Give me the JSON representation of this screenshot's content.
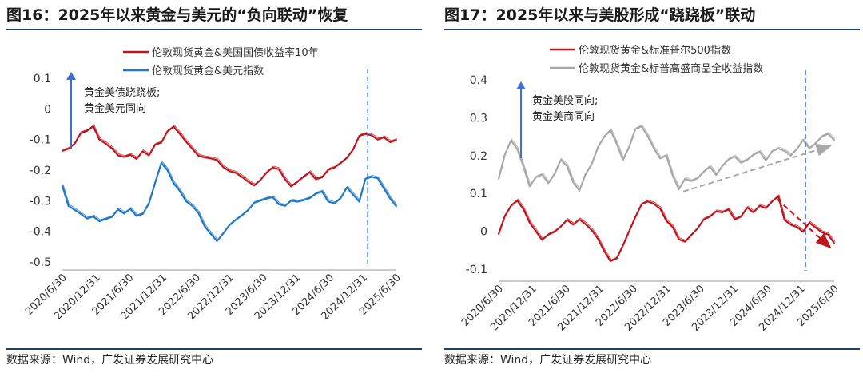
{
  "source_text": "数据来源：Wind，广发证券发展研究中心",
  "chart_data": [
    {
      "type": "line",
      "title": "图16：2025年以来黄金与美元的“负向联动”恢复",
      "x_tick_labels": [
        "2020/6/30",
        "2020/12/31",
        "2021/6/30",
        "2021/12/31",
        "2022/6/30",
        "2022/12/31",
        "2023/6/30",
        "2023/12/31",
        "2024/6/30",
        "2024/12/31",
        "2025/6/30"
      ],
      "y_tick_labels": [
        "0.1",
        "0",
        "-0.1",
        "-0.2",
        "-0.3",
        "-0.4",
        "-0.5"
      ],
      "ylim": [
        -0.5,
        0.1
      ],
      "annotation_lines": [
        "黄金美债跷跷板;",
        "黄金美元同向"
      ],
      "vline_at": "2024/12/31",
      "series": [
        {
          "name": "伦敦现货黄金&美国国债收益率10年",
          "color": "#c0151b",
          "values": [
            -0.14,
            -0.13,
            -0.11,
            -0.08,
            -0.07,
            -0.06,
            -0.1,
            -0.11,
            -0.13,
            -0.15,
            -0.16,
            -0.15,
            -0.16,
            -0.14,
            -0.15,
            -0.12,
            -0.11,
            -0.07,
            -0.06,
            -0.08,
            -0.11,
            -0.13,
            -0.15,
            -0.16,
            -0.16,
            -0.17,
            -0.19,
            -0.2,
            -0.21,
            -0.22,
            -0.24,
            -0.25,
            -0.23,
            -0.21,
            -0.19,
            -0.2,
            -0.23,
            -0.25,
            -0.24,
            -0.22,
            -0.21,
            -0.23,
            -0.22,
            -0.2,
            -0.19,
            -0.18,
            -0.16,
            -0.13,
            -0.09,
            -0.08,
            -0.09,
            -0.1,
            -0.09,
            -0.11,
            -0.1
          ]
        },
        {
          "name": "伦敦现货黄金&美元指数",
          "color": "#1f78c8",
          "values": [
            -0.25,
            -0.32,
            -0.33,
            -0.34,
            -0.36,
            -0.35,
            -0.37,
            -0.36,
            -0.35,
            -0.33,
            -0.34,
            -0.33,
            -0.35,
            -0.34,
            -0.31,
            -0.24,
            -0.18,
            -0.2,
            -0.24,
            -0.27,
            -0.3,
            -0.32,
            -0.34,
            -0.38,
            -0.41,
            -0.43,
            -0.41,
            -0.38,
            -0.36,
            -0.35,
            -0.33,
            -0.31,
            -0.3,
            -0.29,
            -0.29,
            -0.31,
            -0.32,
            -0.3,
            -0.3,
            -0.3,
            -0.29,
            -0.28,
            -0.27,
            -0.3,
            -0.31,
            -0.29,
            -0.26,
            -0.28,
            -0.3,
            -0.23,
            -0.22,
            -0.23,
            -0.26,
            -0.29,
            -0.32
          ]
        }
      ]
    },
    {
      "type": "line",
      "title": "图17：2025年以来与美股形成“跷跷板”联动",
      "x_tick_labels": [
        "2020/6/30",
        "2020/12/31",
        "2021/6/30",
        "2021/12/31",
        "2022/6/30",
        "2022/12/31",
        "2023/6/30",
        "2023/12/31",
        "2024/6/30",
        "2024/12/31",
        "2025/6/30"
      ],
      "y_tick_labels": [
        "0.4",
        "0.3",
        "0.2",
        "0.1",
        "0",
        "-0.1"
      ],
      "ylim": [
        -0.1,
        0.4
      ],
      "annotation_lines": [
        "黄金美股同向;",
        "黄金美商同向"
      ],
      "vline_at": "2024/12/31",
      "series": [
        {
          "name": "伦敦现货黄金&标准普尔500指数",
          "color": "#c0151b",
          "values": [
            -0.01,
            0.04,
            0.07,
            0.08,
            0.06,
            0.02,
            0.0,
            -0.02,
            -0.01,
            0.0,
            0.01,
            0.03,
            0.02,
            0.03,
            0.02,
            0.0,
            -0.02,
            -0.05,
            -0.08,
            -0.07,
            -0.04,
            0.0,
            0.04,
            0.07,
            0.08,
            0.07,
            0.06,
            0.03,
            0.01,
            -0.02,
            -0.03,
            -0.01,
            0.01,
            0.03,
            0.04,
            0.05,
            0.05,
            0.06,
            0.03,
            0.04,
            0.06,
            0.05,
            0.07,
            0.06,
            0.08,
            0.09,
            0.03,
            0.02,
            0.01,
            0.0,
            0.02,
            0.01,
            0.0,
            -0.01,
            -0.03
          ]
        },
        {
          "name": "伦敦现货黄金&标普高盛商品全收益指数",
          "color": "#a8a8a8",
          "values": [
            0.14,
            0.2,
            0.24,
            0.22,
            0.17,
            0.12,
            0.14,
            0.15,
            0.13,
            0.15,
            0.19,
            0.17,
            0.13,
            0.11,
            0.15,
            0.18,
            0.22,
            0.25,
            0.27,
            0.23,
            0.19,
            0.22,
            0.27,
            0.28,
            0.25,
            0.22,
            0.19,
            0.2,
            0.15,
            0.11,
            0.14,
            0.13,
            0.14,
            0.16,
            0.17,
            0.15,
            0.17,
            0.19,
            0.2,
            0.18,
            0.19,
            0.2,
            0.21,
            0.19,
            0.21,
            0.22,
            0.21,
            0.2,
            0.22,
            0.24,
            0.22,
            0.23,
            0.25,
            0.26,
            0.24
          ]
        }
      ]
    }
  ]
}
